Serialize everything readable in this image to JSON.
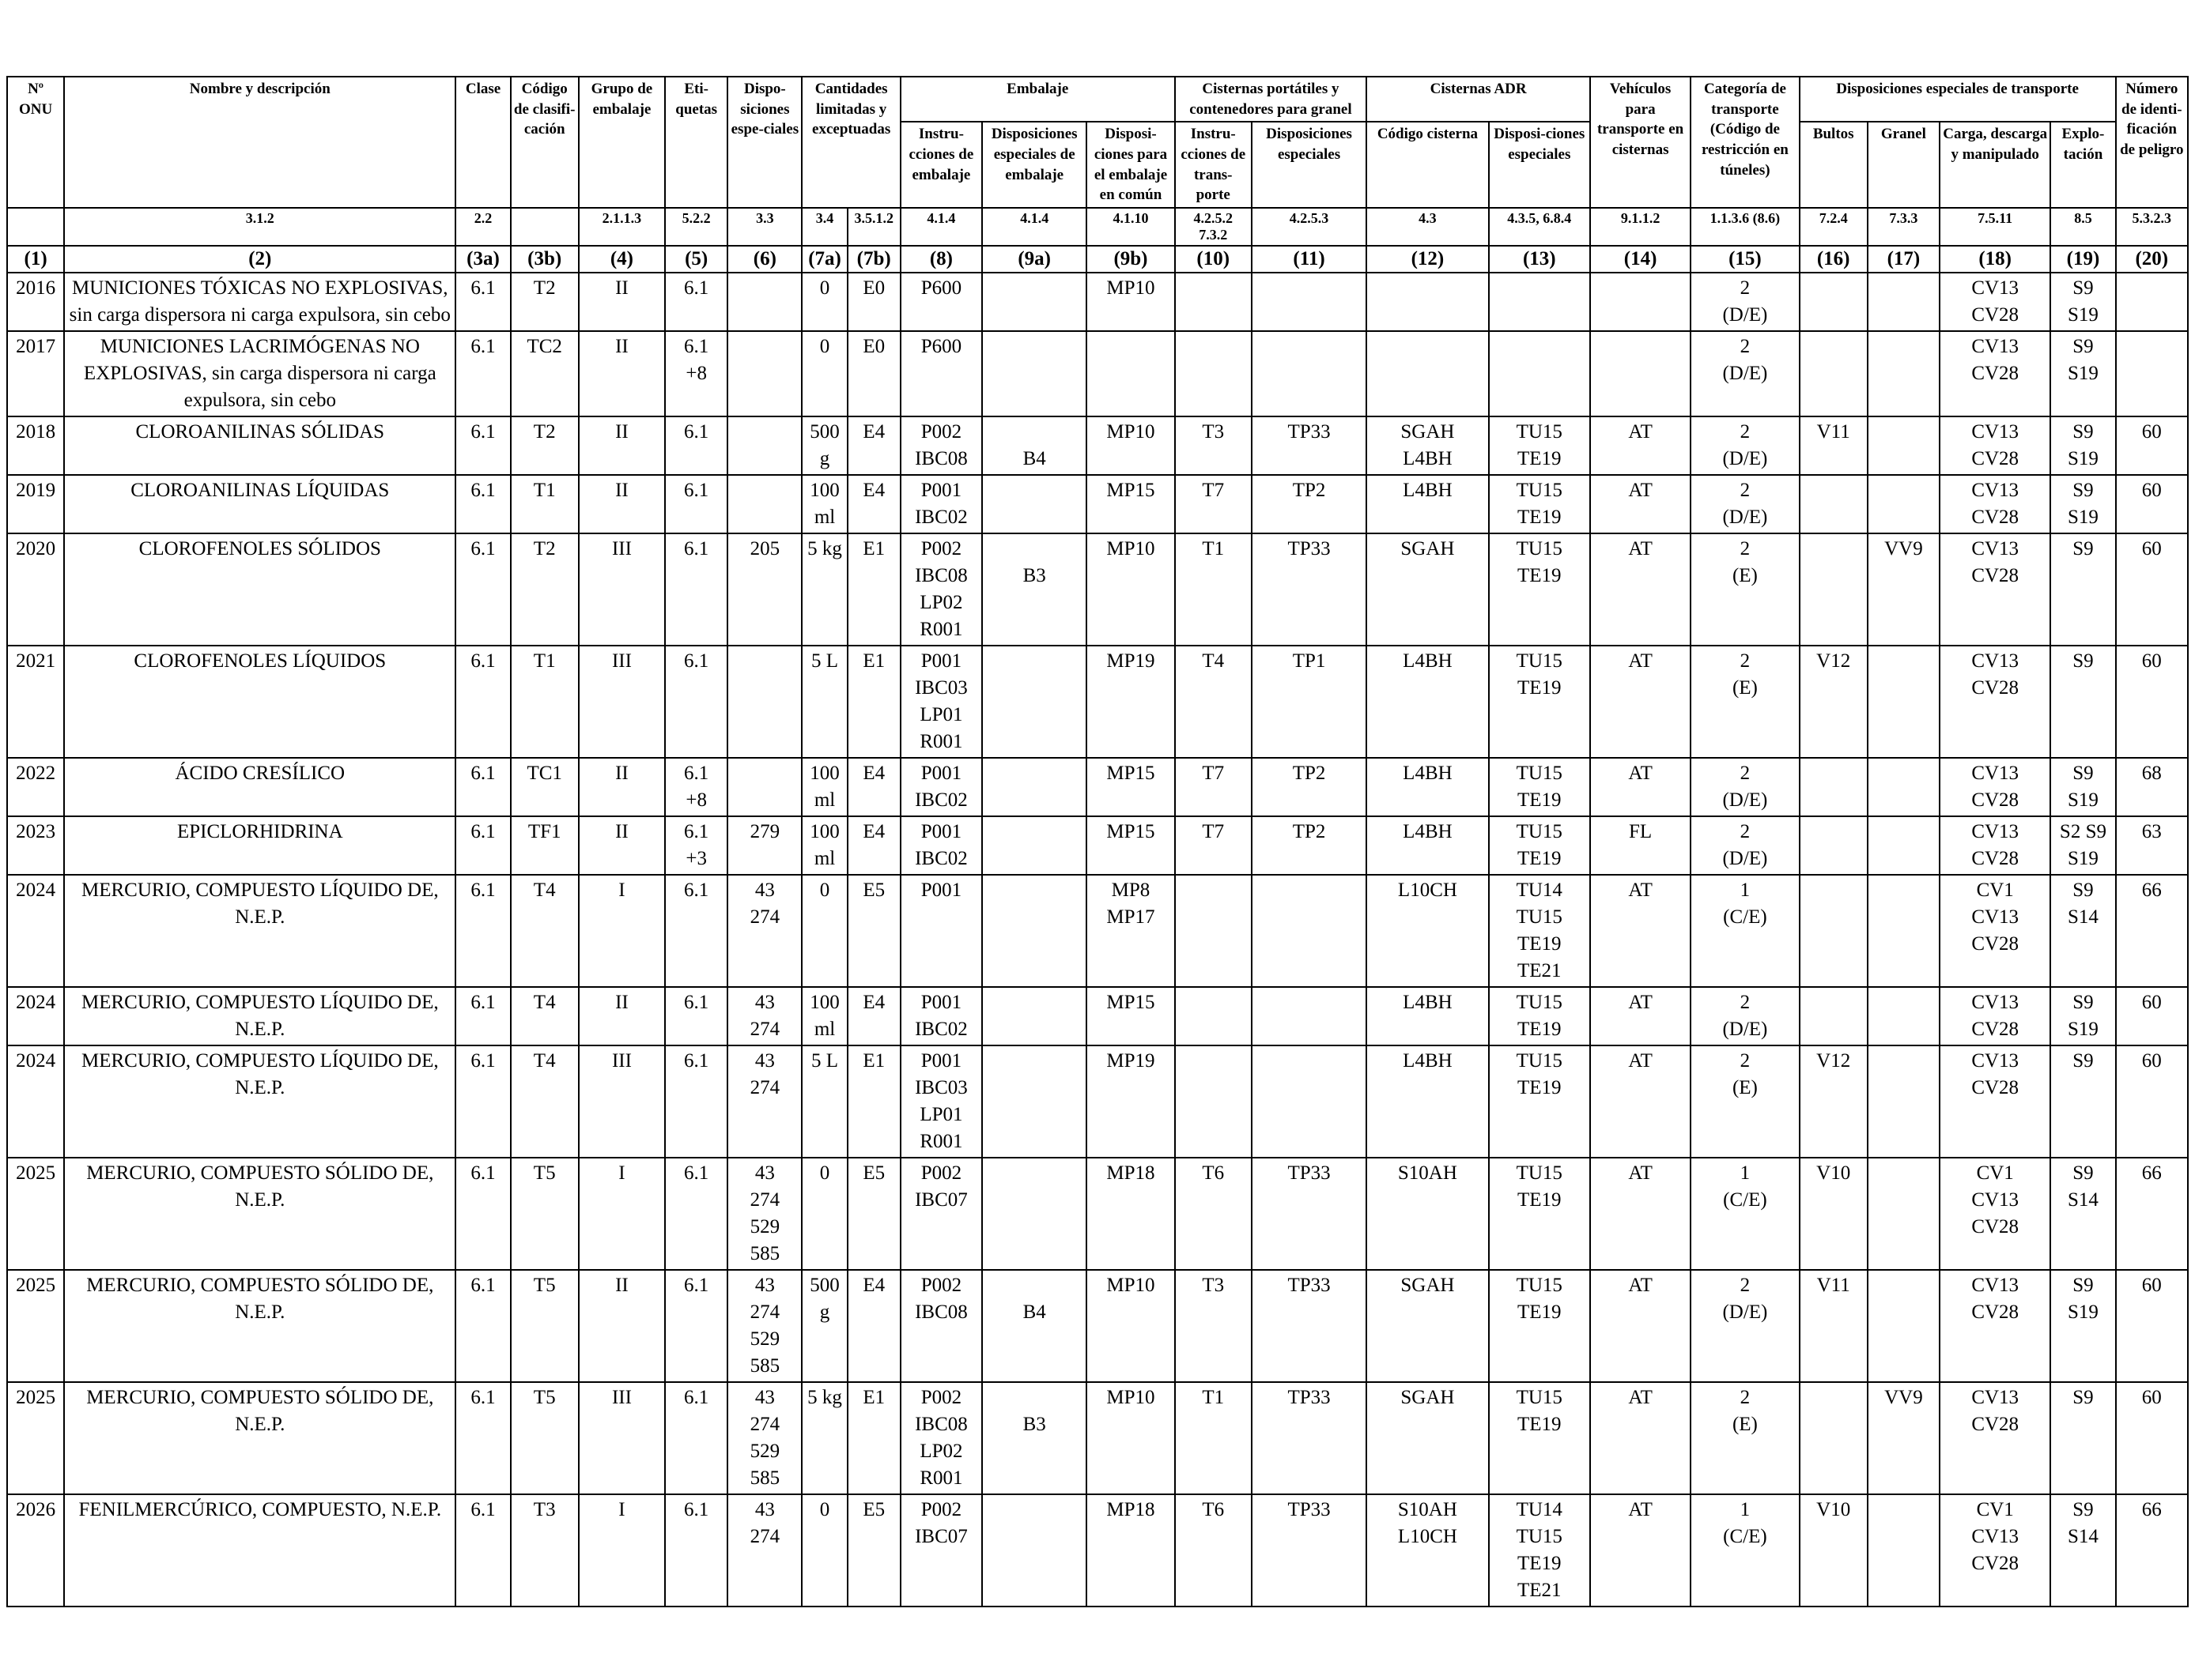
{
  "header": {
    "groups": {
      "cantidades": "Cantidades limitadas y exceptuadas",
      "embalaje": "Embalaje",
      "cisternas_portatiles": "Cisternas portátiles y contenedores para granel",
      "cisternas_adr": "Cisternas ADR",
      "disposiciones_transporte": "Disposiciones especiales de transporte"
    },
    "cols": {
      "c1": "Nº ONU",
      "c2": "Nombre y descripción",
      "c3a": "Clase",
      "c3b": "Código de clasifi-cación",
      "c4": "Grupo de embalaje",
      "c5": "Eti-quetas",
      "c6": "Dispo-siciones espe-ciales",
      "c8": "Instru-cciones de embalaje",
      "c9a": "Disposiciones especiales de embalaje",
      "c9b": "Disposi-ciones para el embalaje en común",
      "c10": "Instru-cciones de trans-porte",
      "c11": "Disposiciones especiales",
      "c12": "Código cisterna",
      "c13": "Disposi-ciones especiales",
      "c14": "Vehículos para transporte en cisternas",
      "c15": "Categoría de transporte (Código de restricción en túneles)",
      "c16": "Bultos",
      "c17": "Granel",
      "c18": "Carga, descarga y manipulado",
      "c19": "Explo-tación",
      "c20": "Número de identi-ficación de peligro"
    },
    "refs": {
      "c1": "",
      "c2": "3.1.2",
      "c3a": "2.2",
      "c3b": "",
      "c4": "2.1.1.3",
      "c5": "5.2.2",
      "c6": "3.3",
      "c7a": "3.4",
      "c7b": "3.5.1.2",
      "c8": "4.1.4",
      "c9a": "4.1.4",
      "c9b": "4.1.10",
      "c10": "4.2.5.2 7.3.2",
      "c11": "4.2.5.3",
      "c12": "4.3",
      "c13": "4.3.5, 6.8.4",
      "c14": "9.1.1.2",
      "c15": "1.1.3.6 (8.6)",
      "c16": "7.2.4",
      "c17": "7.3.3",
      "c18": "7.5.11",
      "c19": "8.5",
      "c20": "5.3.2.3"
    },
    "numbers": [
      "(1)",
      "(2)",
      "(3a)",
      "(3b)",
      "(4)",
      "(5)",
      "(6)",
      "(7a)",
      "(7b)",
      "(8)",
      "(9a)",
      "(9b)",
      "(10)",
      "(11)",
      "(12)",
      "(13)",
      "(14)",
      "(15)",
      "(16)",
      "(17)",
      "(18)",
      "(19)",
      "(20)"
    ]
  },
  "rows": [
    {
      "un": "2016",
      "name": "MUNICIONES TÓXICAS NO EXPLOSIVAS, sin carga dispersora ni carga expulsora, sin cebo",
      "c3a": "6.1",
      "c3b": "T2",
      "c4": "II",
      "c5": "6.1",
      "c6": "",
      "c7a": "0",
      "c7b": "E0",
      "c8": "P600",
      "c9a": "",
      "c9b": "MP10",
      "c10": "",
      "c11": "",
      "c12": "",
      "c13": "",
      "c14": "",
      "c15": "2\n(D/E)",
      "c16": "",
      "c17": "",
      "c18": "CV13\nCV28",
      "c19": "S9\nS19",
      "c20": ""
    },
    {
      "un": "2017",
      "name": "MUNICIONES LACRIMÓGENAS NO EXPLOSIVAS, sin carga dispersora ni carga expulsora, sin cebo",
      "c3a": "6.1",
      "c3b": "TC2",
      "c4": "II",
      "c5": "6.1\n+8",
      "c6": "",
      "c7a": "0",
      "c7b": "E0",
      "c8": "P600",
      "c9a": "",
      "c9b": "",
      "c10": "",
      "c11": "",
      "c12": "",
      "c13": "",
      "c14": "",
      "c15": "2\n(D/E)",
      "c16": "",
      "c17": "",
      "c18": "CV13\nCV28",
      "c19": "S9\nS19",
      "c20": ""
    },
    {
      "un": "2018",
      "name": "CLOROANILINAS SÓLIDAS",
      "c3a": "6.1",
      "c3b": "T2",
      "c4": "II",
      "c5": "6.1",
      "c6": "",
      "c7a": "500\ng",
      "c7b": "E4",
      "c8": "P002\nIBC08",
      "c9a": "\nB4",
      "c9b": "MP10",
      "c10": "T3",
      "c11": "TP33",
      "c12": "SGAH\nL4BH",
      "c13": "TU15\nTE19",
      "c14": "AT",
      "c15": "2\n(D/E)",
      "c16": "V11",
      "c17": "",
      "c18": "CV13\nCV28",
      "c19": "S9\nS19",
      "c20": "60"
    },
    {
      "un": "2019",
      "name": "CLOROANILINAS LÍQUIDAS",
      "c3a": "6.1",
      "c3b": "T1",
      "c4": "II",
      "c5": "6.1",
      "c6": "",
      "c7a": "100\nml",
      "c7b": "E4",
      "c8": "P001\nIBC02",
      "c9a": "",
      "c9b": "MP15",
      "c10": "T7",
      "c11": "TP2",
      "c12": "L4BH",
      "c13": "TU15\nTE19",
      "c14": "AT",
      "c15": "2\n(D/E)",
      "c16": "",
      "c17": "",
      "c18": "CV13\nCV28",
      "c19": "S9\nS19",
      "c20": "60"
    },
    {
      "un": "2020",
      "name": "CLOROFENOLES SÓLIDOS",
      "c3a": "6.1",
      "c3b": "T2",
      "c4": "III",
      "c5": "6.1",
      "c6": "205",
      "c7a": "5 kg",
      "c7b": "E1",
      "c8": "P002\nIBC08\nLP02\nR001",
      "c9a": "\nB3",
      "c9b": "MP10",
      "c10": "T1",
      "c11": "TP33",
      "c12": "SGAH",
      "c13": "TU15\nTE19",
      "c14": "AT",
      "c15": "2\n(E)",
      "c16": "",
      "c17": "VV9",
      "c18": "CV13\nCV28",
      "c19": "S9",
      "c20": "60"
    },
    {
      "un": "2021",
      "name": "CLOROFENOLES LÍQUIDOS",
      "c3a": "6.1",
      "c3b": "T1",
      "c4": "III",
      "c5": "6.1",
      "c6": "",
      "c7a": "5 L",
      "c7b": "E1",
      "c8": "P001\nIBC03\nLP01\nR001",
      "c9a": "",
      "c9b": "MP19",
      "c10": "T4",
      "c11": "TP1",
      "c12": "L4BH",
      "c13": "TU15\nTE19",
      "c14": "AT",
      "c15": "2\n(E)",
      "c16": "V12",
      "c17": "",
      "c18": "CV13\nCV28",
      "c19": "S9",
      "c20": "60"
    },
    {
      "un": "2022",
      "name": "ÁCIDO CRESÍLICO",
      "c3a": "6.1",
      "c3b": "TC1",
      "c4": "II",
      "c5": "6.1\n+8",
      "c6": "",
      "c7a": "100\nml",
      "c7b": "E4",
      "c8": "P001\nIBC02",
      "c9a": "",
      "c9b": "MP15",
      "c10": "T7",
      "c11": "TP2",
      "c12": "L4BH",
      "c13": "TU15\nTE19",
      "c14": "AT",
      "c15": "2\n(D/E)",
      "c16": "",
      "c17": "",
      "c18": "CV13\nCV28",
      "c19": "S9\nS19",
      "c20": "68"
    },
    {
      "un": "2023",
      "name": "EPICLORHIDRINA",
      "c3a": "6.1",
      "c3b": "TF1",
      "c4": "II",
      "c5": "6.1\n+3",
      "c6": "279",
      "c7a": "100\nml",
      "c7b": "E4",
      "c8": "P001\nIBC02",
      "c9a": "",
      "c9b": "MP15",
      "c10": "T7",
      "c11": "TP2",
      "c12": "L4BH",
      "c13": "TU15\nTE19",
      "c14": "FL",
      "c15": "2\n(D/E)",
      "c16": "",
      "c17": "",
      "c18": "CV13\nCV28",
      "c19": "S2 S9\nS19",
      "c20": "63"
    },
    {
      "un": "2024",
      "name": "MERCURIO, COMPUESTO LÍQUIDO DE, N.E.P.",
      "c3a": "6.1",
      "c3b": "T4",
      "c4": "I",
      "c5": "6.1",
      "c6": "43\n274",
      "c7a": "0",
      "c7b": "E5",
      "c8": "P001",
      "c9a": "",
      "c9b": "MP8\nMP17",
      "c10": "",
      "c11": "",
      "c12": "L10CH",
      "c13": "TU14\nTU15\nTE19\nTE21",
      "c14": "AT",
      "c15": "1\n(C/E)",
      "c16": "",
      "c17": "",
      "c18": "CV1\nCV13\nCV28",
      "c19": "S9\nS14",
      "c20": "66"
    },
    {
      "un": "2024",
      "name": "MERCURIO, COMPUESTO LÍQUIDO DE, N.E.P.",
      "c3a": "6.1",
      "c3b": "T4",
      "c4": "II",
      "c5": "6.1",
      "c6": "43\n274",
      "c7a": "100\nml",
      "c7b": "E4",
      "c8": "P001\nIBC02",
      "c9a": "",
      "c9b": "MP15",
      "c10": "",
      "c11": "",
      "c12": "L4BH",
      "c13": "TU15\nTE19",
      "c14": "AT",
      "c15": "2\n(D/E)",
      "c16": "",
      "c17": "",
      "c18": "CV13\nCV28",
      "c19": "S9\nS19",
      "c20": "60"
    },
    {
      "un": "2024",
      "name": "MERCURIO, COMPUESTO LÍQUIDO DE, N.E.P.",
      "c3a": "6.1",
      "c3b": "T4",
      "c4": "III",
      "c5": "6.1",
      "c6": "43\n274",
      "c7a": "5 L",
      "c7b": "E1",
      "c8": "P001\nIBC03\nLP01\nR001",
      "c9a": "",
      "c9b": "MP19",
      "c10": "",
      "c11": "",
      "c12": "L4BH",
      "c13": "TU15\nTE19",
      "c14": "AT",
      "c15": "2\n(E)",
      "c16": "V12",
      "c17": "",
      "c18": "CV13\nCV28",
      "c19": "S9",
      "c20": "60"
    },
    {
      "un": "2025",
      "name": "MERCURIO, COMPUESTO SÓLIDO DE, N.E.P.",
      "c3a": "6.1",
      "c3b": "T5",
      "c4": "I",
      "c5": "6.1",
      "c6": "43\n274\n529\n585",
      "c7a": "0",
      "c7b": "E5",
      "c8": "P002\nIBC07",
      "c9a": "",
      "c9b": "MP18",
      "c10": "T6",
      "c11": "TP33",
      "c12": "S10AH",
      "c13": "TU15\nTE19",
      "c14": "AT",
      "c15": "1\n(C/E)",
      "c16": "V10",
      "c17": "",
      "c18": "CV1\nCV13\nCV28",
      "c19": "S9\nS14",
      "c20": "66"
    },
    {
      "un": "2025",
      "name": "MERCURIO, COMPUESTO SÓLIDO DE, N.E.P.",
      "c3a": "6.1",
      "c3b": "T5",
      "c4": "II",
      "c5": "6.1",
      "c6": "43\n274\n529\n585",
      "c7a": "500\ng",
      "c7b": "E4",
      "c8": "P002\nIBC08",
      "c9a": "\nB4",
      "c9b": "MP10",
      "c10": "T3",
      "c11": "TP33",
      "c12": "SGAH",
      "c13": "TU15\nTE19",
      "c14": "AT",
      "c15": "2\n(D/E)",
      "c16": "V11",
      "c17": "",
      "c18": "CV13\nCV28",
      "c19": "S9\nS19",
      "c20": "60"
    },
    {
      "un": "2025",
      "name": "MERCURIO, COMPUESTO SÓLIDO DE, N.E.P.",
      "c3a": "6.1",
      "c3b": "T5",
      "c4": "III",
      "c5": "6.1",
      "c6": "43\n274\n529\n585",
      "c7a": "5 kg",
      "c7b": "E1",
      "c8": "P002\nIBC08\nLP02\nR001",
      "c9a": "\nB3",
      "c9b": "MP10",
      "c10": "T1",
      "c11": "TP33",
      "c12": "SGAH",
      "c13": "TU15\nTE19",
      "c14": "AT",
      "c15": "2\n(E)",
      "c16": "",
      "c17": "VV9",
      "c18": "CV13\nCV28",
      "c19": "S9",
      "c20": "60"
    },
    {
      "un": "2026",
      "name": "FENILMERCÚRICO, COMPUESTO, N.E.P.",
      "c3a": "6.1",
      "c3b": "T3",
      "c4": "I",
      "c5": "6.1",
      "c6": "43\n274",
      "c7a": "0",
      "c7b": "E5",
      "c8": "P002\nIBC07",
      "c9a": "",
      "c9b": "MP18",
      "c10": "T6",
      "c11": "TP33",
      "c12": "S10AH\nL10CH",
      "c13": "TU14\nTU15\nTE19\nTE21",
      "c14": "AT",
      "c15": "1\n(C/E)",
      "c16": "V10",
      "c17": "",
      "c18": "CV1\nCV13\nCV28",
      "c19": "S9\nS14",
      "c20": "66"
    }
  ]
}
